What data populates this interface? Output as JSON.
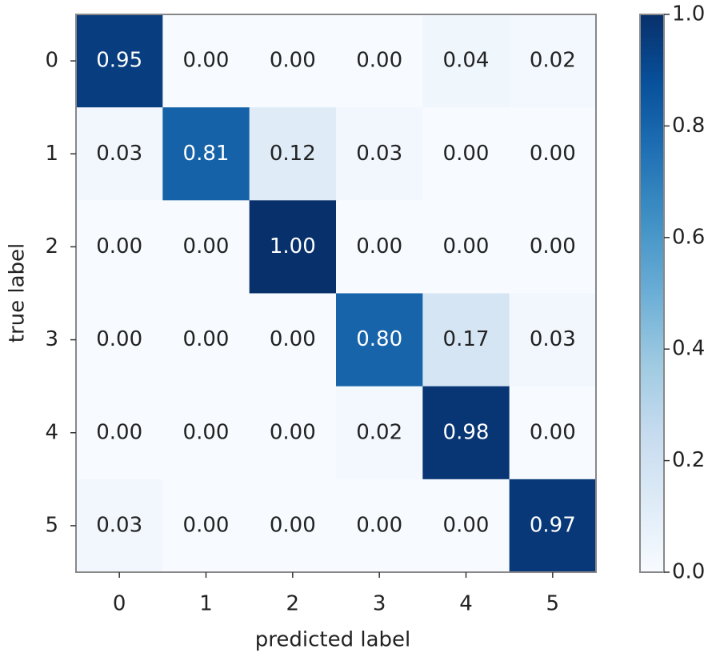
{
  "chart_data": {
    "type": "heatmap",
    "x_label": "predicted label",
    "y_label": "true label",
    "x_categories": [
      "0",
      "1",
      "2",
      "3",
      "4",
      "5"
    ],
    "y_categories": [
      "0",
      "1",
      "2",
      "3",
      "4",
      "5"
    ],
    "values": [
      [
        0.95,
        0.0,
        0.0,
        0.0,
        0.04,
        0.02
      ],
      [
        0.03,
        0.81,
        0.12,
        0.03,
        0.0,
        0.0
      ],
      [
        0.0,
        0.0,
        1.0,
        0.0,
        0.0,
        0.0
      ],
      [
        0.0,
        0.0,
        0.0,
        0.8,
        0.17,
        0.03
      ],
      [
        0.0,
        0.0,
        0.0,
        0.02,
        0.98,
        0.0
      ],
      [
        0.03,
        0.0,
        0.0,
        0.0,
        0.0,
        0.97
      ]
    ],
    "value_labels": [
      [
        "0.95",
        "0.00",
        "0.00",
        "0.00",
        "0.04",
        "0.02"
      ],
      [
        "0.03",
        "0.81",
        "0.12",
        "0.03",
        "0.00",
        "0.00"
      ],
      [
        "0.00",
        "0.00",
        "1.00",
        "0.00",
        "0.00",
        "0.00"
      ],
      [
        "0.00",
        "0.00",
        "0.00",
        "0.80",
        "0.17",
        "0.03"
      ],
      [
        "0.00",
        "0.00",
        "0.00",
        "0.02",
        "0.98",
        "0.00"
      ],
      [
        "0.03",
        "0.00",
        "0.00",
        "0.00",
        "0.00",
        "0.97"
      ]
    ],
    "colormap": "Blues",
    "clim": [
      0,
      1
    ],
    "cticks": [
      {
        "value": 0,
        "label": "0.0"
      },
      0.2,
      0.4,
      0.6,
      0.8,
      {
        "value": 1,
        "label": "1.0"
      }
    ]
  }
}
